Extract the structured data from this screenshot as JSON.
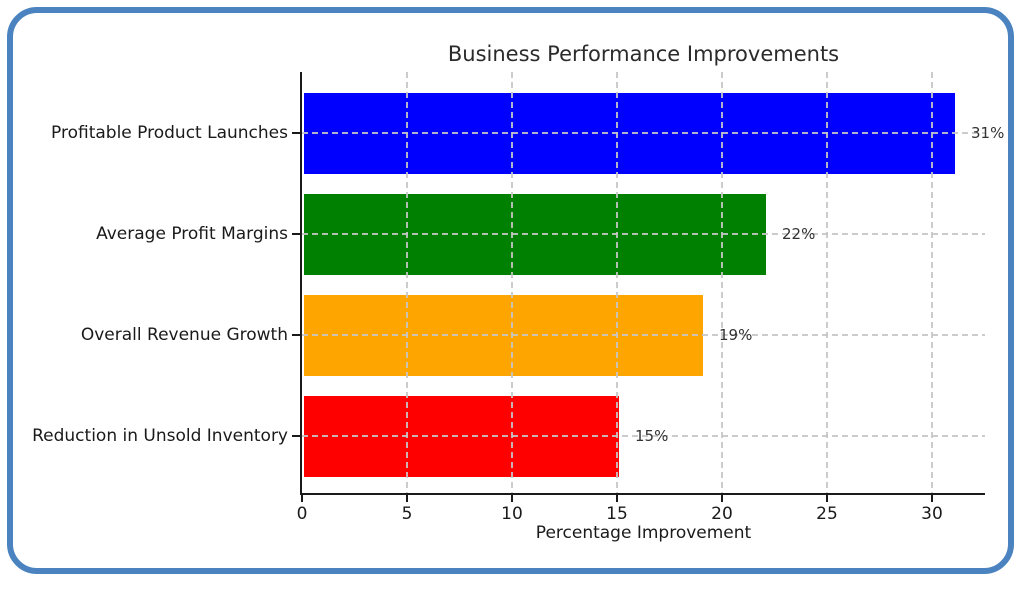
{
  "frame": {
    "border_color": "#4a83c0",
    "background": "#ffffff"
  },
  "chart_data": {
    "type": "bar",
    "orientation": "horizontal",
    "title": "Business Performance Improvements",
    "xlabel": "Percentage Improvement",
    "ylabel": "",
    "categories": [
      "Profitable Product Launches",
      "Average Profit Margins",
      "Overall Revenue Growth",
      "Reduction in Unsold Inventory"
    ],
    "values": [
      31,
      22,
      19,
      15
    ],
    "value_labels": [
      "31%",
      "22%",
      "19%",
      "15%"
    ],
    "bar_colors": [
      "#0000ff",
      "#008000",
      "#ffa500",
      "#ff0000"
    ],
    "xticks": [
      "0",
      "5",
      "10",
      "15",
      "20",
      "25",
      "30"
    ],
    "xtick_values": [
      0,
      5,
      10,
      15,
      20,
      25,
      30
    ],
    "xlim": [
      0,
      32.5
    ],
    "grid": true,
    "grid_style": "dashed",
    "grid_color": "#c6c6c6",
    "legend_position": "none",
    "text_color": "#1a1a1a",
    "axis_color": "#1a1a1a"
  }
}
